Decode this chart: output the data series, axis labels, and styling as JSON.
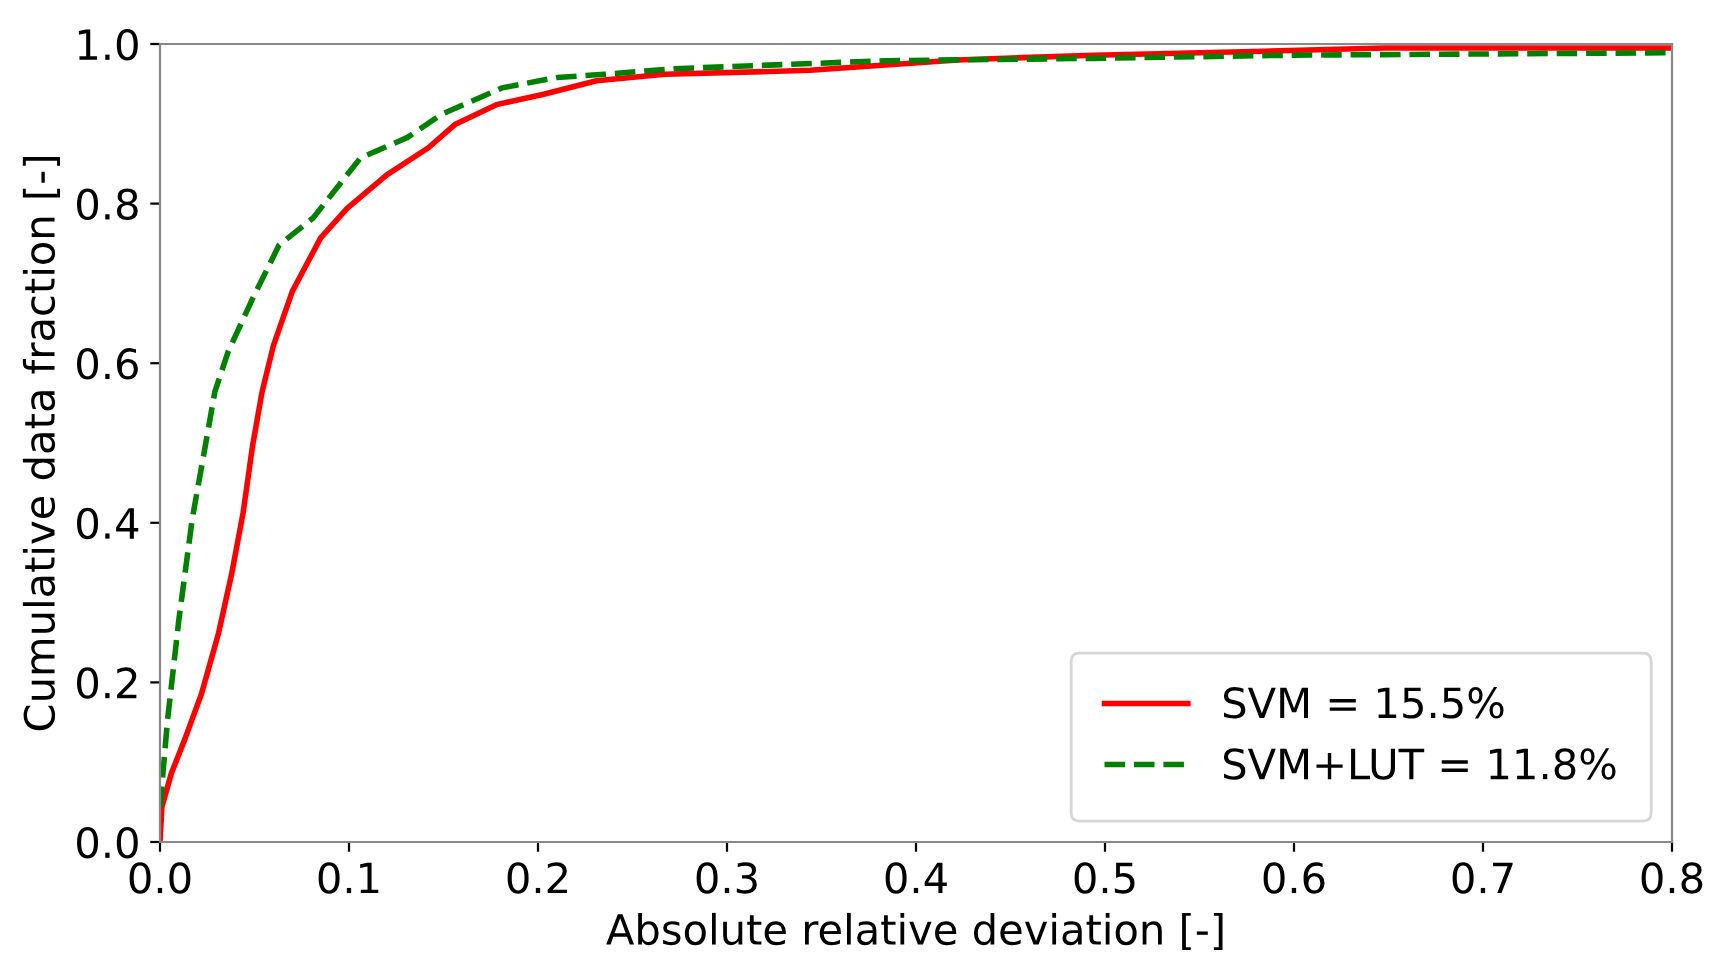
{
  "chart_data": {
    "type": "line",
    "xlabel": "Absolute relative deviation [-]",
    "ylabel": "Cumulative data fraction [-]",
    "xlim": [
      0,
      0.8
    ],
    "ylim": [
      0,
      1.0
    ],
    "xticks": [
      {
        "value": 0,
        "label": "0.0"
      },
      0.1,
      0.2,
      0.3,
      0.4,
      0.5,
      0.6,
      0.7,
      0.8
    ],
    "yticks": [
      {
        "value": 0,
        "label": "0.0"
      },
      0.2,
      0.4,
      0.6,
      0.8,
      {
        "value": 1,
        "label": "1.0"
      }
    ],
    "grid": false,
    "legend": "bottom right",
    "series": [
      {
        "name": "SVM = 15.5%",
        "color": "#ff0000",
        "line_style": "solid",
        "x": [
          0,
          0.001,
          0.006,
          0.013,
          0.022,
          0.031,
          0.038,
          0.044,
          0.049,
          0.054,
          0.06,
          0.07,
          0.085,
          0.099,
          0.12,
          0.142,
          0.156,
          0.178,
          0.203,
          0.231,
          0.267,
          0.344,
          0.422,
          0.494,
          0.584,
          0.648,
          0.8
        ],
        "values": [
          0,
          0.044,
          0.086,
          0.128,
          0.186,
          0.262,
          0.337,
          0.413,
          0.497,
          0.564,
          0.622,
          0.69,
          0.757,
          0.794,
          0.836,
          0.87,
          0.899,
          0.924,
          0.937,
          0.954,
          0.962,
          0.967,
          0.98,
          0.986,
          0.991,
          0.995,
          0.995
        ]
      },
      {
        "name": "SVM+LUT = 11.8%",
        "color": "#008000",
        "line_style": "dashed",
        "x": [
          0,
          0.004,
          0.01,
          0.017,
          0.024,
          0.029,
          0.036,
          0.049,
          0.063,
          0.081,
          0.106,
          0.131,
          0.149,
          0.181,
          0.21,
          0.235,
          0.272,
          0.383,
          0.494,
          0.6,
          0.8
        ],
        "values": [
          0.044,
          0.153,
          0.279,
          0.404,
          0.497,
          0.564,
          0.614,
          0.681,
          0.748,
          0.782,
          0.857,
          0.883,
          0.912,
          0.945,
          0.958,
          0.962,
          0.969,
          0.979,
          0.982,
          0.986,
          0.989
        ]
      }
    ]
  }
}
